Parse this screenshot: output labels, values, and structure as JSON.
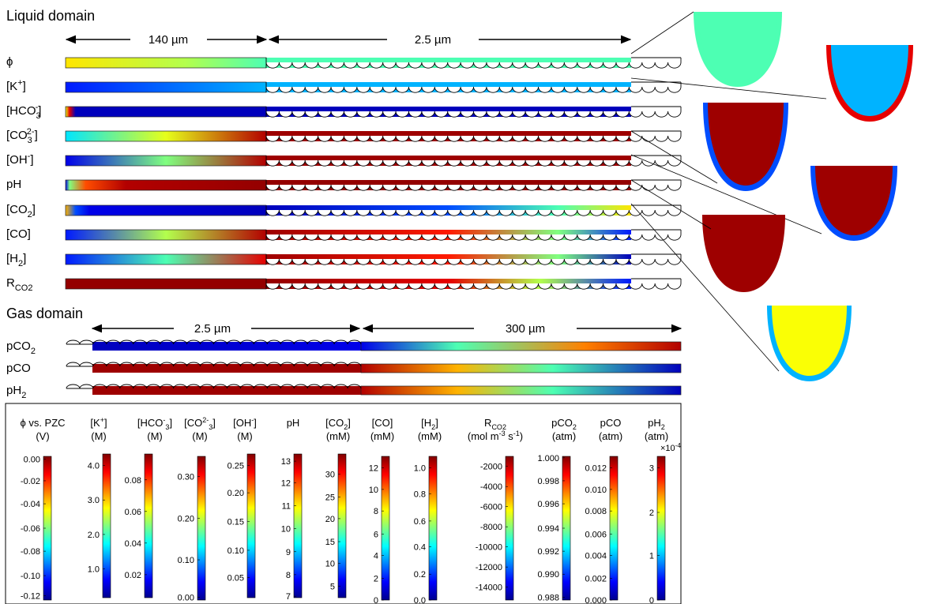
{
  "sections": {
    "liquid": "Liquid domain",
    "gas": "Gas domain"
  },
  "dims": {
    "liquid_bulk": "140 µm",
    "liquid_catalyst": "2.5 µm",
    "gas_catalyst": "2.5 µm",
    "gas_bulk": "300 µm"
  },
  "colormap": [
    "#00008f",
    "#0000ff",
    "#0080ff",
    "#00ffff",
    "#80ff80",
    "#ffff00",
    "#ff8000",
    "#ff0000",
    "#800000"
  ],
  "liquid_rows": [
    {
      "id": "phi",
      "label": "ϕ",
      "stops": [
        [
          0,
          0.65
        ],
        [
          0.6,
          0.55
        ],
        [
          1,
          0.45
        ],
        [
          1.0,
          0.45
        ],
        [
          1.0,
          0.45
        ],
        [
          1,
          0.45
        ]
      ],
      "catalyst": [
        [
          0,
          0.45
        ],
        [
          1,
          0.45
        ]
      ]
    },
    {
      "id": "k",
      "label": "[K",
      "sup": "+",
      "close": "]",
      "stops": [
        [
          0,
          0.15
        ],
        [
          1,
          0.3
        ]
      ],
      "catalyst": [
        [
          0,
          0.3
        ],
        [
          1,
          0.3
        ]
      ]
    },
    {
      "id": "hco3",
      "label": "[HCO",
      "sub": "3",
      "sup": "-",
      "close": "]",
      "stops": [
        [
          0,
          0.6
        ],
        [
          0.02,
          0.9
        ],
        [
          0.05,
          0.05
        ],
        [
          1,
          0.05
        ]
      ],
      "catalyst": [
        [
          0,
          0.05
        ],
        [
          1,
          0.05
        ]
      ]
    },
    {
      "id": "co3",
      "label": "[CO",
      "sub": "3",
      "sup": "2-",
      "close": "]",
      "stops": [
        [
          0,
          0.35
        ],
        [
          0.5,
          0.6
        ],
        [
          1,
          0.95
        ]
      ],
      "catalyst": [
        [
          0,
          0.97
        ],
        [
          1,
          0.97
        ]
      ]
    },
    {
      "id": "oh",
      "label": "[OH",
      "sup": "-",
      "close": "]",
      "stops": [
        [
          0,
          0.1
        ],
        [
          0.5,
          0.5
        ],
        [
          1,
          0.95
        ]
      ],
      "catalyst": [
        [
          0,
          0.97
        ],
        [
          1,
          0.97
        ]
      ]
    },
    {
      "id": "ph",
      "label": "pH",
      "stops": [
        [
          0,
          0.1
        ],
        [
          0.02,
          0.5
        ],
        [
          0.1,
          0.8
        ],
        [
          0.3,
          0.95
        ],
        [
          1,
          0.98
        ]
      ],
      "catalyst": [
        [
          0,
          0.98
        ],
        [
          1,
          0.98
        ]
      ]
    },
    {
      "id": "co2",
      "label": "[CO",
      "sub": "2",
      "close": "]",
      "stops": [
        [
          0,
          0.7
        ],
        [
          0.05,
          0.2
        ],
        [
          0.12,
          0.1
        ],
        [
          1,
          0.05
        ]
      ],
      "catalyst": [
        [
          0,
          0.05
        ],
        [
          0.5,
          0.2
        ],
        [
          0.8,
          0.45
        ],
        [
          1,
          0.65
        ]
      ]
    },
    {
      "id": "co",
      "label": "[CO]",
      "stops": [
        [
          0,
          0.15
        ],
        [
          0.5,
          0.55
        ],
        [
          1,
          0.95
        ]
      ],
      "catalyst": [
        [
          0,
          0.97
        ],
        [
          0.5,
          0.85
        ],
        [
          0.8,
          0.5
        ],
        [
          1,
          0.15
        ]
      ]
    },
    {
      "id": "h2",
      "label": "[H",
      "sub": "2",
      "close": "]",
      "stops": [
        [
          0,
          0.15
        ],
        [
          0.5,
          0.45
        ],
        [
          1,
          0.9
        ]
      ],
      "catalyst": [
        [
          0,
          0.97
        ],
        [
          0.5,
          0.85
        ],
        [
          0.8,
          0.5
        ],
        [
          1,
          0.05
        ]
      ]
    },
    {
      "id": "rco2",
      "label": "R",
      "sub": "CO2",
      "stops": [
        [
          0,
          0.98
        ],
        [
          1,
          0.98
        ]
      ],
      "catalyst": [
        [
          0,
          0.98
        ],
        [
          0.5,
          0.9
        ],
        [
          0.75,
          0.55
        ],
        [
          1,
          0.15
        ]
      ]
    }
  ],
  "gas_rows": [
    {
      "id": "pco2",
      "label": "pCO",
      "sub": "2",
      "catalyst": [
        [
          0,
          0.05
        ],
        [
          1,
          0.1
        ]
      ],
      "stops": [
        [
          0,
          0.1
        ],
        [
          0.3,
          0.45
        ],
        [
          0.7,
          0.75
        ],
        [
          1,
          0.95
        ]
      ]
    },
    {
      "id": "pco",
      "label": "pCO",
      "catalyst": [
        [
          0,
          0.97
        ],
        [
          1,
          0.97
        ]
      ],
      "stops": [
        [
          0,
          0.95
        ],
        [
          0.3,
          0.7
        ],
        [
          0.6,
          0.45
        ],
        [
          1,
          0.05
        ]
      ]
    },
    {
      "id": "ph2",
      "label": "pH",
      "sub": "2",
      "catalyst": [
        [
          0,
          0.97
        ],
        [
          1,
          0.97
        ]
      ],
      "stops": [
        [
          0,
          0.95
        ],
        [
          0.3,
          0.7
        ],
        [
          0.6,
          0.45
        ],
        [
          1,
          0.05
        ]
      ]
    }
  ],
  "colorbars": [
    {
      "id": "phi",
      "title": [
        {
          "t": "ϕ vs. PZC"
        }
      ],
      "title2": [
        {
          "t": "(V)"
        }
      ],
      "ticks": [
        "0.00",
        "-0.02",
        "-0.04",
        "-0.06",
        "-0.08",
        "-0.10",
        "-0.12"
      ],
      "fracs": [
        0.98,
        0.83,
        0.67,
        0.5,
        0.34,
        0.17,
        0.03
      ]
    },
    {
      "id": "k",
      "title": [
        {
          "t": "[K"
        },
        {
          "t": "+",
          "sup": 1
        },
        {
          "t": "]"
        }
      ],
      "title2": [
        {
          "t": "(M)"
        }
      ],
      "ticks": [
        "4.0",
        "3.0",
        "2.0",
        "1.0"
      ],
      "fracs": [
        0.92,
        0.68,
        0.44,
        0.2
      ]
    },
    {
      "id": "hco3",
      "title": [
        {
          "t": "[HCO"
        },
        {
          "t": "-",
          "sup": 1
        },
        {
          "t": "3",
          "sub": 1
        },
        {
          "t": "]"
        }
      ],
      "title2": [
        {
          "t": "(M)"
        }
      ],
      "ticks": [
        "0.08",
        "0.06",
        "0.04",
        "0.02"
      ],
      "fracs": [
        0.82,
        0.6,
        0.38,
        0.16
      ]
    },
    {
      "id": "co3",
      "title": [
        {
          "t": "[CO"
        },
        {
          "t": "2-",
          "sup": 1
        },
        {
          "t": "3",
          "sub": 1
        },
        {
          "t": "]"
        }
      ],
      "title2": [
        {
          "t": "(M)"
        }
      ],
      "ticks": [
        "0.30",
        "0.20",
        "0.10",
        "0.00"
      ],
      "fracs": [
        0.86,
        0.57,
        0.28,
        0.02
      ]
    },
    {
      "id": "oh",
      "title": [
        {
          "t": "[OH"
        },
        {
          "t": "-",
          "sup": 1
        },
        {
          "t": "]"
        }
      ],
      "title2": [
        {
          "t": "(M)"
        }
      ],
      "ticks": [
        "0.25",
        "0.20",
        "0.15",
        "0.10",
        "0.05"
      ],
      "fracs": [
        0.92,
        0.73,
        0.53,
        0.33,
        0.14
      ]
    },
    {
      "id": "ph",
      "title": [
        {
          "t": "pH"
        }
      ],
      "title2": [],
      "ticks": [
        "13",
        "12",
        "11",
        "10",
        "9",
        "8",
        "7"
      ],
      "fracs": [
        0.95,
        0.8,
        0.64,
        0.48,
        0.32,
        0.16,
        0.01
      ]
    },
    {
      "id": "co2",
      "title": [
        {
          "t": "[CO"
        },
        {
          "t": "2",
          "sub": 1
        },
        {
          "t": "]"
        }
      ],
      "title2": [
        {
          "t": "(mM)"
        }
      ],
      "ticks": [
        "30",
        "25",
        "20",
        "15",
        "10",
        "5"
      ],
      "fracs": [
        0.86,
        0.7,
        0.55,
        0.39,
        0.24,
        0.08
      ]
    },
    {
      "id": "co",
      "title": [
        {
          "t": "[CO]"
        }
      ],
      "title2": [
        {
          "t": "(mM)"
        }
      ],
      "ticks": [
        "12",
        "10",
        "8",
        "6",
        "4",
        "2",
        "0"
      ],
      "fracs": [
        0.92,
        0.77,
        0.62,
        0.46,
        0.31,
        0.15,
        0.0
      ]
    },
    {
      "id": "h2",
      "title": [
        {
          "t": "[H"
        },
        {
          "t": "2",
          "sub": 1
        },
        {
          "t": "]"
        }
      ],
      "title2": [
        {
          "t": "(mM)"
        }
      ],
      "ticks": [
        "1.0",
        "0.8",
        "0.6",
        "0.4",
        "0.2",
        "0.0"
      ],
      "fracs": [
        0.92,
        0.74,
        0.55,
        0.37,
        0.18,
        0.0
      ]
    },
    {
      "id": "rco2",
      "title": [
        {
          "t": "R"
        },
        {
          "t": "CO2",
          "sub": 1
        }
      ],
      "title2": [
        {
          "t": "(mol m"
        },
        {
          "t": "-3",
          "sup": 1
        },
        {
          "t": " s"
        },
        {
          "t": "-1",
          "sup": 1
        },
        {
          "t": ")"
        }
      ],
      "ticks": [
        "-2000",
        "-4000",
        "-6000",
        "-8000",
        "-10000",
        "-12000",
        "-14000"
      ],
      "fracs": [
        0.93,
        0.79,
        0.65,
        0.51,
        0.37,
        0.23,
        0.09
      ]
    },
    {
      "id": "pco2",
      "title": [
        {
          "t": "pCO"
        },
        {
          "t": "2",
          "sub": 1
        }
      ],
      "title2": [
        {
          "t": "(atm)"
        }
      ],
      "ticks": [
        "1.000",
        "0.998",
        "0.996",
        "0.994",
        "0.992",
        "0.990",
        "0.988"
      ],
      "fracs": [
        0.99,
        0.83,
        0.67,
        0.5,
        0.34,
        0.18,
        0.02
      ]
    },
    {
      "id": "pco",
      "title": [
        {
          "t": "pCO"
        }
      ],
      "title2": [
        {
          "t": "(atm)"
        }
      ],
      "ticks": [
        "0.012",
        "0.010",
        "0.008",
        "0.006",
        "0.004",
        "0.002",
        "0.000"
      ],
      "fracs": [
        0.92,
        0.77,
        0.62,
        0.46,
        0.31,
        0.15,
        0.0
      ]
    },
    {
      "id": "ph2",
      "title": [
        {
          "t": "pH"
        },
        {
          "t": "2",
          "sub": 1
        }
      ],
      "title2": [
        {
          "t": "(atm)"
        }
      ],
      "exponent": "×10",
      "exponent_power": "-4",
      "ticks": [
        "3",
        "2",
        "1",
        "0"
      ],
      "fracs": [
        0.92,
        0.61,
        0.31,
        0.0
      ]
    }
  ],
  "insets": [
    {
      "id": "phi-inset",
      "level": 0.45,
      "edge": 0.45
    },
    {
      "id": "k-inset",
      "level": 0.3,
      "edge": 0.9
    },
    {
      "id": "co3-inset",
      "level": 0.97,
      "edge": 0.2
    },
    {
      "id": "oh-inset",
      "level": 0.97,
      "edge": 0.2
    },
    {
      "id": "ph-inset",
      "level": 0.97,
      "edge": 0.97
    },
    {
      "id": "co2-inset",
      "level": 0.62,
      "edge": 0.3
    }
  ]
}
